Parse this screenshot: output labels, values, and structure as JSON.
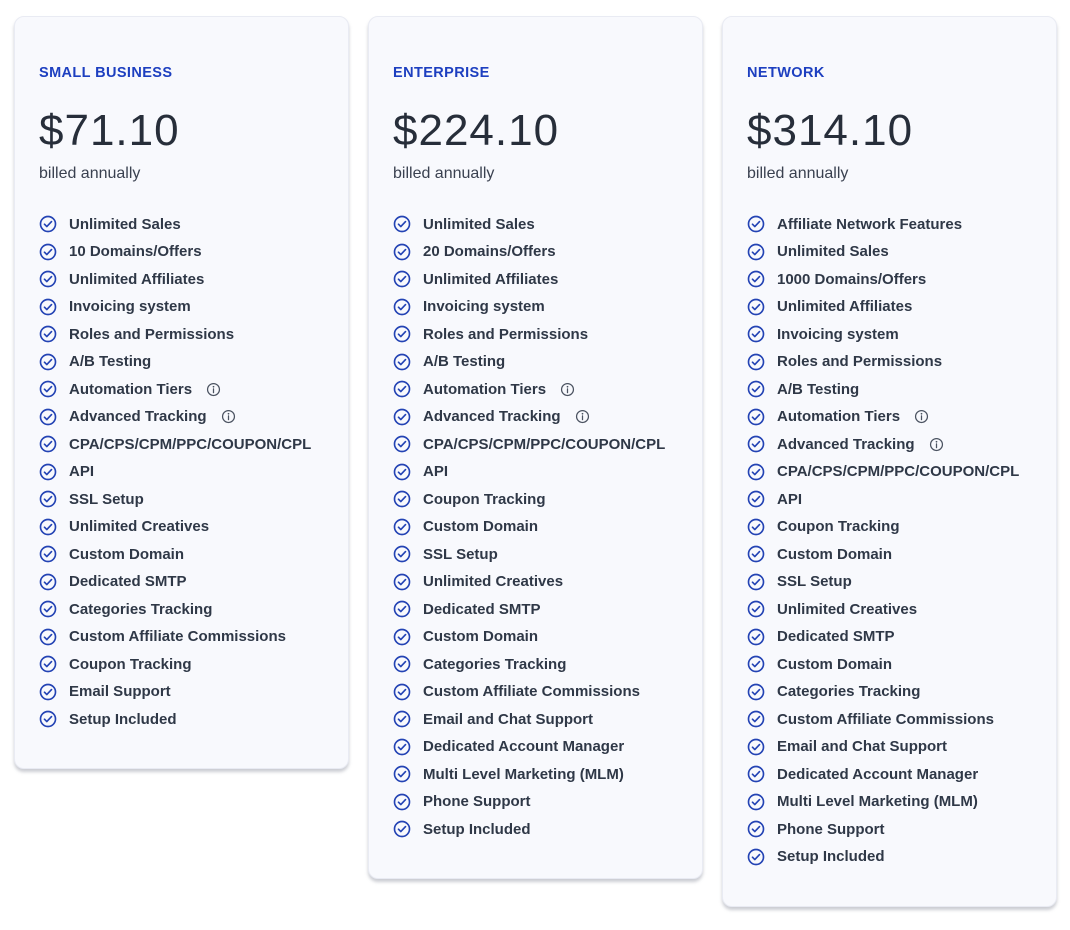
{
  "colors": {
    "accent_blue": "#1d3fc0",
    "check_blue": "#2343b4",
    "info_gray": "#4a5260",
    "card_background": "#f8f9fd",
    "text_dark": "#2f3847"
  },
  "icons": {
    "feature_bullet": "check-circle-icon",
    "tooltip": "info-circle-icon"
  },
  "plans": [
    {
      "name": "SMALL BUSINESS",
      "price": "$71.10",
      "billing_note": "billed annually",
      "features": [
        {
          "label": "Unlimited Sales",
          "info": false
        },
        {
          "label": "10 Domains/Offers",
          "info": false
        },
        {
          "label": "Unlimited Affiliates",
          "info": false
        },
        {
          "label": "Invoicing system",
          "info": false
        },
        {
          "label": "Roles and Permissions",
          "info": false
        },
        {
          "label": "A/B Testing",
          "info": false
        },
        {
          "label": "Automation Tiers",
          "info": true
        },
        {
          "label": "Advanced Tracking",
          "info": true
        },
        {
          "label": "CPA/CPS/CPM/PPC/COUPON/CPL",
          "info": false
        },
        {
          "label": "API",
          "info": false
        },
        {
          "label": "SSL Setup",
          "info": false
        },
        {
          "label": "Unlimited Creatives",
          "info": false
        },
        {
          "label": "Custom Domain",
          "info": false
        },
        {
          "label": "Dedicated SMTP",
          "info": false
        },
        {
          "label": "Categories Tracking",
          "info": false
        },
        {
          "label": "Custom Affiliate Commissions",
          "info": false
        },
        {
          "label": "Coupon Tracking",
          "info": false
        },
        {
          "label": "Email Support",
          "info": false
        },
        {
          "label": "Setup Included",
          "info": false
        }
      ]
    },
    {
      "name": "ENTERPRISE",
      "price": "$224.10",
      "billing_note": "billed annually",
      "features": [
        {
          "label": "Unlimited Sales",
          "info": false
        },
        {
          "label": "20 Domains/Offers",
          "info": false
        },
        {
          "label": "Unlimited Affiliates",
          "info": false
        },
        {
          "label": "Invoicing system",
          "info": false
        },
        {
          "label": "Roles and Permissions",
          "info": false
        },
        {
          "label": "A/B Testing",
          "info": false
        },
        {
          "label": "Automation Tiers",
          "info": true
        },
        {
          "label": "Advanced Tracking",
          "info": true
        },
        {
          "label": "CPA/CPS/CPM/PPC/COUPON/CPL",
          "info": false
        },
        {
          "label": "API",
          "info": false
        },
        {
          "label": "Coupon Tracking",
          "info": false
        },
        {
          "label": "Custom Domain",
          "info": false
        },
        {
          "label": "SSL Setup",
          "info": false
        },
        {
          "label": "Unlimited Creatives",
          "info": false
        },
        {
          "label": "Dedicated SMTP",
          "info": false
        },
        {
          "label": "Custom Domain",
          "info": false
        },
        {
          "label": "Categories Tracking",
          "info": false
        },
        {
          "label": "Custom Affiliate Commissions",
          "info": false
        },
        {
          "label": "Email and Chat Support",
          "info": false
        },
        {
          "label": "Dedicated Account Manager",
          "info": false
        },
        {
          "label": "Multi Level Marketing (MLM)",
          "info": false
        },
        {
          "label": "Phone Support",
          "info": false
        },
        {
          "label": "Setup Included",
          "info": false
        }
      ]
    },
    {
      "name": "NETWORK",
      "price": "$314.10",
      "billing_note": "billed annually",
      "features": [
        {
          "label": "Affiliate Network Features",
          "info": false
        },
        {
          "label": "Unlimited Sales",
          "info": false
        },
        {
          "label": "1000 Domains/Offers",
          "info": false
        },
        {
          "label": "Unlimited Affiliates",
          "info": false
        },
        {
          "label": "Invoicing system",
          "info": false
        },
        {
          "label": "Roles and Permissions",
          "info": false
        },
        {
          "label": "A/B Testing",
          "info": false
        },
        {
          "label": "Automation Tiers",
          "info": true
        },
        {
          "label": "Advanced Tracking",
          "info": true
        },
        {
          "label": "CPA/CPS/CPM/PPC/COUPON/CPL",
          "info": false
        },
        {
          "label": "API",
          "info": false
        },
        {
          "label": "Coupon Tracking",
          "info": false
        },
        {
          "label": "Custom Domain",
          "info": false
        },
        {
          "label": "SSL Setup",
          "info": false
        },
        {
          "label": "Unlimited Creatives",
          "info": false
        },
        {
          "label": "Dedicated SMTP",
          "info": false
        },
        {
          "label": "Custom Domain",
          "info": false
        },
        {
          "label": "Categories Tracking",
          "info": false
        },
        {
          "label": "Custom Affiliate Commissions",
          "info": false
        },
        {
          "label": "Email and Chat Support",
          "info": false
        },
        {
          "label": "Dedicated Account Manager",
          "info": false
        },
        {
          "label": "Multi Level Marketing (MLM)",
          "info": false
        },
        {
          "label": "Phone Support",
          "info": false
        },
        {
          "label": "Setup Included",
          "info": false
        }
      ]
    }
  ]
}
